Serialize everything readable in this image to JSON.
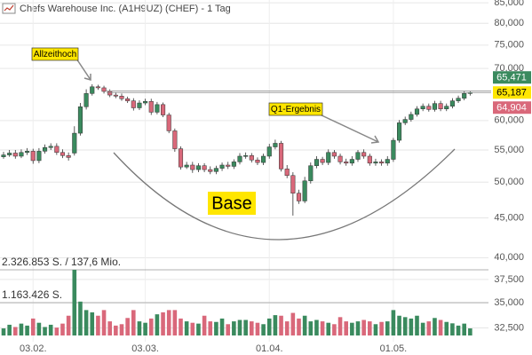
{
  "chart_data": {
    "type": "candlestick",
    "title": "Chefs Warehouse Inc. (A1H9UZ) (CHEF) - 1 Tag",
    "log_scale": true,
    "grid": true,
    "categories": [
      null,
      null,
      null,
      null,
      null,
      "03.02.",
      null,
      null,
      null,
      null,
      null,
      null,
      null,
      null,
      null,
      null,
      null,
      null,
      null,
      null,
      null,
      null,
      null,
      null,
      "03.03.",
      null,
      null,
      null,
      null,
      null,
      null,
      null,
      null,
      null,
      null,
      null,
      null,
      null,
      null,
      null,
      null,
      null,
      null,
      null,
      null,
      "01.04.",
      null,
      null,
      null,
      null,
      null,
      null,
      null,
      null,
      null,
      null,
      null,
      null,
      null,
      null,
      null,
      null,
      null,
      null,
      null,
      null,
      "01.05.",
      null,
      null,
      null,
      null,
      null,
      null,
      null,
      null,
      null,
      null,
      null,
      null,
      null
    ],
    "up_color": "#3a8a5e",
    "down_color": "#d9687a",
    "open": [
      53900,
      54200,
      54500,
      54000,
      54600,
      54800,
      53300,
      54800,
      55400,
      55600,
      54600,
      54100,
      54500,
      57800,
      62500,
      65000,
      66300,
      66100,
      65400,
      64700,
      64500,
      64000,
      63600,
      62300,
      63200,
      63500,
      61500,
      62900,
      61000,
      58200,
      55200,
      52300,
      52600,
      51900,
      52500,
      51900,
      51600,
      52100,
      52600,
      52400,
      53100,
      54000,
      54100,
      53400,
      53000,
      54000,
      55500,
      56100,
      52000,
      51000,
      48400,
      47300,
      50200,
      52500,
      53500,
      53000,
      54600,
      54000,
      53100,
      52900,
      53500,
      54600,
      54000,
      52900,
      53100,
      52900,
      53500,
      56600,
      59600,
      60200,
      61100,
      62100,
      62600,
      62000,
      63100,
      62100,
      62600,
      63600,
      64100,
      65000
    ],
    "high": [
      54700,
      55000,
      55000,
      55100,
      55300,
      55200,
      55300,
      55900,
      56100,
      56100,
      55100,
      54600,
      59000,
      63200,
      65800,
      66800,
      66700,
      66500,
      65800,
      65200,
      65000,
      64400,
      64100,
      63700,
      64000,
      64000,
      63400,
      63300,
      61400,
      58600,
      55600,
      53100,
      53100,
      52900,
      52900,
      52400,
      52500,
      53000,
      53100,
      53500,
      54500,
      54600,
      54500,
      53800,
      54400,
      56000,
      56700,
      56500,
      52600,
      51500,
      48900,
      50800,
      53000,
      54000,
      53900,
      55100,
      55000,
      54400,
      53600,
      54000,
      55000,
      55100,
      54400,
      53600,
      53500,
      54000,
      57000,
      60100,
      60700,
      61600,
      62600,
      63100,
      63100,
      63600,
      63600,
      63100,
      64100,
      64600,
      65500,
      65500
    ],
    "low": [
      53600,
      53900,
      53600,
      53700,
      54200,
      52800,
      52900,
      54400,
      55000,
      54200,
      53700,
      53300,
      54100,
      57400,
      62000,
      64600,
      65700,
      65000,
      64300,
      64100,
      63600,
      63200,
      61800,
      61900,
      62800,
      61000,
      61100,
      60600,
      57800,
      54700,
      51900,
      52000,
      51400,
      51500,
      51500,
      51200,
      51200,
      51700,
      52000,
      52000,
      52700,
      53600,
      53000,
      52600,
      52600,
      53600,
      55100,
      51600,
      50600,
      45300,
      46900,
      47000,
      49800,
      52100,
      52600,
      52600,
      53600,
      52700,
      52500,
      52500,
      53100,
      53600,
      52500,
      52500,
      52500,
      52500,
      53100,
      56200,
      59200,
      59800,
      60700,
      61700,
      61600,
      61600,
      61700,
      61700,
      62200,
      63200,
      63700,
      64600
    ],
    "close": [
      54200,
      54500,
      54000,
      54600,
      54800,
      53300,
      54800,
      55400,
      55600,
      54600,
      54100,
      53800,
      57800,
      62500,
      65000,
      66300,
      66100,
      65400,
      64700,
      64500,
      64000,
      63600,
      62300,
      63200,
      63500,
      61500,
      62900,
      61000,
      58200,
      55200,
      52300,
      52600,
      51900,
      52500,
      51900,
      51600,
      52100,
      52600,
      52400,
      53100,
      54000,
      54100,
      53400,
      53000,
      54000,
      55500,
      56100,
      52000,
      51000,
      48400,
      47300,
      50200,
      52500,
      53500,
      53000,
      54600,
      54000,
      53100,
      52900,
      53500,
      54600,
      54000,
      52900,
      53100,
      52900,
      53500,
      56600,
      59600,
      60200,
      61100,
      62100,
      62600,
      62000,
      63100,
      62100,
      62600,
      63600,
      64100,
      65000,
      65187
    ],
    "volume": [
      250000,
      380000,
      300000,
      420000,
      350000,
      600000,
      450000,
      300000,
      380000,
      280000,
      420000,
      700000,
      2326853,
      1200000,
      900000,
      820000,
      700000,
      900000,
      500000,
      350000,
      400000,
      620000,
      900000,
      500000,
      450000,
      600000,
      750000,
      820000,
      900000,
      900000,
      600000,
      500000,
      450000,
      420000,
      700000,
      500000,
      480000,
      600000,
      400000,
      500000,
      550000,
      550000,
      500000,
      450000,
      400000,
      600000,
      720000,
      700000,
      500000,
      800000,
      600000,
      700000,
      500000,
      550000,
      500000,
      450000,
      400000,
      650000,
      500000,
      450000,
      500000,
      550000,
      500000,
      400000,
      480000,
      500000,
      900000,
      700000,
      650000,
      600000,
      700000,
      450000,
      500000,
      620000,
      550000,
      480000,
      430000,
      350000,
      420000,
      250000
    ],
    "volume_ticks": [
      {
        "value": 2326853,
        "label": "2.326.853 S. / 137,6 Mio."
      },
      {
        "value": 1163426,
        "label": "1.163.426 S."
      }
    ],
    "ylim": [
      31200,
      85700
    ],
    "yticks": [
      {
        "value": 32500,
        "label": "32,500"
      },
      {
        "value": 35000,
        "label": "35,000"
      },
      {
        "value": 37500,
        "label": "37,500"
      },
      {
        "value": 40000,
        "label": "40,000"
      },
      {
        "value": 45000,
        "label": "45,000"
      },
      {
        "value": 50000,
        "label": "50,000"
      },
      {
        "value": 55000,
        "label": "55,000"
      },
      {
        "value": 60000,
        "label": "60,000"
      },
      {
        "value": 70000,
        "label": "70,000"
      },
      {
        "value": 75000,
        "label": "75,000"
      },
      {
        "value": 80000,
        "label": "80,000"
      },
      {
        "value": 85000,
        "label": "85,000"
      }
    ],
    "price_tags": [
      {
        "value": 65471,
        "label": "65,471",
        "color": "#3a8a5e"
      },
      {
        "value": 65187,
        "label": "65,187",
        "color": "#ffe600"
      },
      {
        "value": 64904,
        "label": "64,904",
        "color": "#d9687a"
      }
    ],
    "annotations": [
      "Allzeithoch",
      "Q1-Ergebnis",
      "Base"
    ]
  }
}
